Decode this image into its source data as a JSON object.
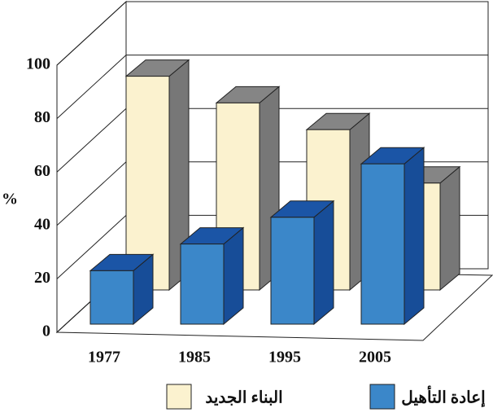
{
  "chart_data": {
    "type": "bar",
    "y_label": "%",
    "categories": [
      "1977",
      "1985",
      "1995",
      "2005"
    ],
    "series": [
      {
        "name": "البناء الجديد",
        "color": "#fbf2cf",
        "values": [
          80,
          70,
          60,
          40
        ]
      },
      {
        "name": "إعادة التأهيل",
        "color": "#3b87c9",
        "values": [
          20,
          30,
          40,
          60
        ]
      }
    ],
    "ylim": [
      0,
      100
    ],
    "yticks": [
      0,
      20,
      40,
      60,
      80,
      100
    ],
    "grid": true
  }
}
